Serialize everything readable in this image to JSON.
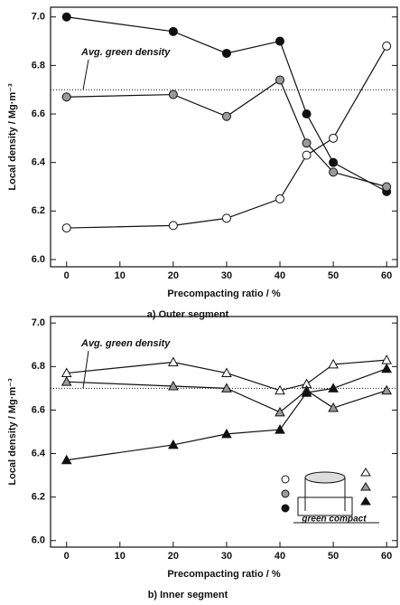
{
  "chart_data": [
    {
      "type": "line",
      "caption": "a) Outer segment",
      "xlabel": "Precompacting ratio / %",
      "ylabel": "Local density / Mg·m⁻³",
      "x": [
        0,
        20,
        30,
        40,
        45,
        50,
        60
      ],
      "xlim": [
        -3,
        62
      ],
      "xticks": [
        0,
        10,
        20,
        30,
        40,
        50,
        60
      ],
      "ylim": [
        5.97,
        7.04
      ],
      "yticks": [
        {
          "value": 6,
          "label": "6.0"
        },
        6.2,
        6.4,
        6.6,
        6.8,
        {
          "value": 7,
          "label": "7.0"
        }
      ],
      "reference_line": {
        "value": 6.7,
        "label": "Avg. green density"
      },
      "series": [
        {
          "marker": "circle",
          "color": "#111111",
          "values": [
            7.0,
            6.94,
            6.85,
            6.9,
            6.6,
            6.4,
            6.28
          ]
        },
        {
          "marker": "circle",
          "color": "#9a9a9a",
          "values": [
            6.67,
            6.68,
            6.59,
            6.74,
            6.48,
            6.36,
            6.3
          ]
        },
        {
          "marker": "circle",
          "color": "#ffffff",
          "values": [
            6.13,
            6.14,
            6.17,
            6.25,
            6.43,
            6.5,
            6.88
          ]
        }
      ]
    },
    {
      "type": "line",
      "caption": "b) Inner segment",
      "xlabel": "Precompacting ratio / %",
      "ylabel": "Local density / Mg·m⁻³",
      "x": [
        0,
        20,
        30,
        40,
        45,
        50,
        60
      ],
      "xlim": [
        -3,
        62
      ],
      "xticks": [
        0,
        10,
        20,
        30,
        40,
        50,
        60
      ],
      "ylim": [
        5.97,
        7.03
      ],
      "yticks": [
        {
          "value": 6,
          "label": "6.0"
        },
        6.2,
        6.4,
        6.6,
        6.8,
        {
          "value": 7,
          "label": "7.0"
        }
      ],
      "reference_line": {
        "value": 6.7,
        "label": "Avg. green density"
      },
      "inset_label": "green compact",
      "series": [
        {
          "marker": "triangle",
          "color": "#ffffff",
          "values": [
            6.77,
            6.82,
            6.77,
            6.69,
            6.72,
            6.81,
            6.83
          ]
        },
        {
          "marker": "triangle",
          "color": "#9a9a9a",
          "values": [
            6.73,
            6.71,
            6.7,
            6.59,
            6.69,
            6.61,
            6.69
          ]
        },
        {
          "marker": "triangle",
          "color": "#111111",
          "values": [
            6.37,
            6.44,
            6.49,
            6.51,
            6.68,
            6.7,
            6.79
          ]
        }
      ]
    }
  ]
}
